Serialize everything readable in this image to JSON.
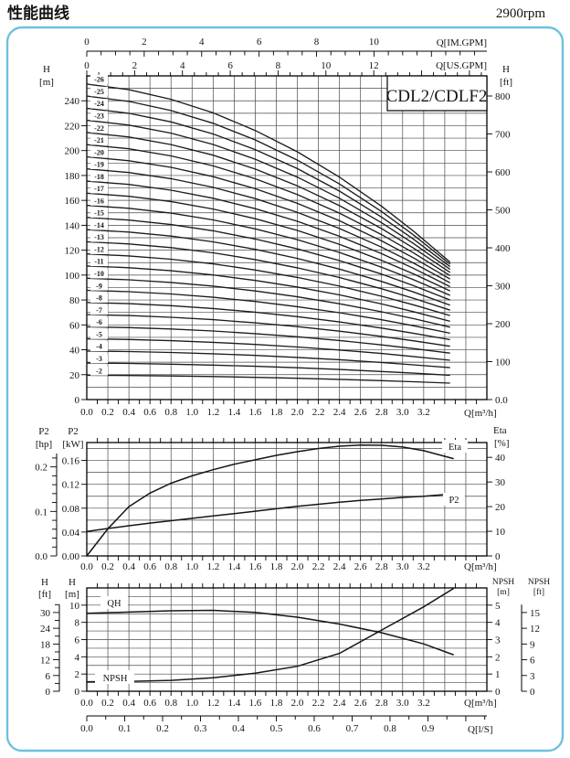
{
  "header": {
    "title": "性能曲线",
    "rpm": "2900rpm"
  },
  "frame": {
    "border_color": "#6ec1dd"
  },
  "model_label": "CDL2/CDLF2",
  "units": {
    "flow_m3h": "Q[m³/h]",
    "flow_imgpm": "Q[IM.GPM]",
    "flow_usgpm": "Q[US.GPM]",
    "flow_ls": "Q[l/S]"
  },
  "flow_axis": {
    "q_max": 3.8,
    "tick_values": [
      0,
      0.2,
      0.4,
      0.6,
      0.8,
      1.0,
      1.2,
      1.4,
      1.6,
      1.8,
      2.0,
      2.2,
      2.4,
      2.6,
      2.8,
      3.0,
      3.2
    ],
    "tick_labels": [
      "0.0",
      "0.2",
      "0.4",
      "0.6",
      "0.8",
      "1.0",
      "1.2",
      "1.4",
      "1.6",
      "1.8",
      "2.0",
      "2.2",
      "2.4",
      "2.6",
      "2.8",
      "3.0",
      "3.2"
    ]
  },
  "imgpm": {
    "tick_values": [
      0,
      2,
      4,
      6,
      8,
      10
    ],
    "tick_labels": [
      "0",
      "2",
      "4",
      "6",
      "8",
      "10"
    ],
    "m3h_per_unit": 0.27277,
    "minor_step": 0.5
  },
  "usgpm": {
    "tick_values": [
      0,
      2,
      4,
      6,
      8,
      10,
      12
    ],
    "tick_labels": [
      "0",
      "2",
      "4",
      "6",
      "8",
      "10",
      "12"
    ],
    "m3h_per_unit": 0.22712,
    "minor_step": 0.5
  },
  "ls": {
    "tick_values": [
      0,
      0.1,
      0.2,
      0.3,
      0.4,
      0.5,
      0.6,
      0.7,
      0.8,
      0.9
    ],
    "tick_labels": [
      "0.0",
      "0.1",
      "0.2",
      "0.3",
      "0.4",
      "0.5",
      "0.6",
      "0.7",
      "0.8",
      "0.9"
    ],
    "m3h_per_unit": 3.6,
    "minor_step": 0.05
  },
  "chart_data": [
    {
      "id": "head_curves",
      "type": "line",
      "title": "CDL2/CDLF2 multi-stage head curves",
      "xlabel": "Q[m³/h]",
      "y_left": {
        "name": "H",
        "unit": "[m]",
        "axis_max": 260,
        "grid_step": 10,
        "tick_values": [
          0,
          20,
          40,
          60,
          80,
          100,
          120,
          140,
          160,
          180,
          200,
          220,
          240
        ],
        "tick_labels": [
          "0",
          "20",
          "40",
          "60",
          "80",
          "100",
          "120",
          "140",
          "160",
          "180",
          "200",
          "220",
          "240"
        ]
      },
      "y_right": {
        "name": "H",
        "unit": "[ft]",
        "m_per_unit": 0.3048,
        "tick_values": [
          0,
          100,
          200,
          300,
          400,
          500,
          600,
          700,
          800
        ],
        "tick_labels": [
          "0.0",
          "100",
          "200",
          "300",
          "400",
          "500",
          "600",
          "700",
          "800"
        ]
      },
      "stage_curves": {
        "q": [
          0,
          0.4,
          0.8,
          1.2,
          1.6,
          2.0,
          2.4,
          2.8,
          3.1,
          3.45
        ],
        "shape": [
          0,
          0.032,
          0.086,
          0.162,
          0.261,
          0.381,
          0.523,
          0.687,
          0.825,
          1
        ],
        "stages": [
          {
            "label": "-2",
            "n": 2,
            "h_start": 19.5,
            "h_end": 13.2
          },
          {
            "label": "-3",
            "n": 3,
            "h_start": 29.3,
            "h_end": 19.5
          },
          {
            "label": "-4",
            "n": 4,
            "h_start": 39.0,
            "h_end": 25.6
          },
          {
            "label": "-5",
            "n": 5,
            "h_start": 48.8,
            "h_end": 31.6
          },
          {
            "label": "-6",
            "n": 6,
            "h_start": 58.5,
            "h_end": 37.3
          },
          {
            "label": "-7",
            "n": 7,
            "h_start": 68.3,
            "h_end": 42.8
          },
          {
            "label": "-8",
            "n": 8,
            "h_start": 78.0,
            "h_end": 48.1
          },
          {
            "label": "-9",
            "n": 9,
            "h_start": 87.8,
            "h_end": 53.3
          },
          {
            "label": "-10",
            "n": 10,
            "h_start": 97.5,
            "h_end": 58.2
          },
          {
            "label": "-11",
            "n": 11,
            "h_start": 107.3,
            "h_end": 62.9
          },
          {
            "label": "-12",
            "n": 12,
            "h_start": 117.0,
            "h_end": 67.5
          },
          {
            "label": "-13",
            "n": 13,
            "h_start": 126.8,
            "h_end": 71.8
          },
          {
            "label": "-14",
            "n": 14,
            "h_start": 136.5,
            "h_end": 75.9
          },
          {
            "label": "-15",
            "n": 15,
            "h_start": 146.3,
            "h_end": 80.0
          },
          {
            "label": "-16",
            "n": 16,
            "h_start": 156.0,
            "h_end": 83.7
          },
          {
            "label": "-17",
            "n": 17,
            "h_start": 165.8,
            "h_end": 87.3
          },
          {
            "label": "-18",
            "n": 18,
            "h_start": 175.5,
            "h_end": 90.7
          },
          {
            "label": "-19",
            "n": 19,
            "h_start": 185.3,
            "h_end": 93.8
          },
          {
            "label": "-20",
            "n": 20,
            "h_start": 195.0,
            "h_end": 96.8
          },
          {
            "label": "-21",
            "n": 21,
            "h_start": 204.8,
            "h_end": 99.6
          },
          {
            "label": "-22",
            "n": 22,
            "h_start": 214.5,
            "h_end": 102.2
          },
          {
            "label": "-23",
            "n": 23,
            "h_start": 224.3,
            "h_end": 104.6
          },
          {
            "label": "-24",
            "n": 24,
            "h_start": 234.0,
            "h_end": 106.8
          },
          {
            "label": "-25",
            "n": 25,
            "h_start": 243.8,
            "h_end": 108.8
          },
          {
            "label": "-26",
            "n": 26,
            "h_start": 253.5,
            "h_end": 110.5
          }
        ]
      }
    },
    {
      "id": "power_efficiency",
      "type": "line",
      "title": "P2 and Eta curves",
      "xlabel": "Q[m³/h]",
      "y_left_outer": {
        "name": "P2",
        "unit": "[hp]",
        "kw_per_unit": 0.746,
        "minor_step": 0.02,
        "axis_max": 0.23,
        "tick_values": [
          0,
          0.1,
          0.2
        ],
        "tick_labels": [
          "0.0",
          "0.1",
          "0.2"
        ]
      },
      "y_left": {
        "name": "P2",
        "unit": "[kW]",
        "axis_max": 0.19,
        "grid_step": 0.02,
        "tick_values": [
          0,
          0.04,
          0.08,
          0.12,
          0.16
        ],
        "tick_labels": [
          "0.00",
          "0.04",
          "0.08",
          "0.12",
          "0.16"
        ]
      },
      "y_right": {
        "name": "Eta",
        "unit": "[%]",
        "axis_max": 46,
        "tick_values": [
          0,
          10,
          20,
          30,
          40
        ],
        "tick_labels": [
          "0",
          "10",
          "20",
          "30",
          "40"
        ]
      },
      "curves": [
        {
          "name": "eta",
          "label": "Eta",
          "axis": "right",
          "q": [
            0,
            0.2,
            0.4,
            0.6,
            0.8,
            1.0,
            1.2,
            1.4,
            1.6,
            1.8,
            2.0,
            2.2,
            2.4,
            2.6,
            2.8,
            3.0,
            3.2,
            3.48
          ],
          "v": [
            0,
            11,
            20,
            25.5,
            29.5,
            32.5,
            35,
            37.2,
            39,
            40.8,
            42.3,
            43.6,
            44.5,
            45,
            44.9,
            44.2,
            42.7,
            39.5
          ]
        },
        {
          "name": "p2",
          "label": "P2",
          "axis": "left",
          "q": [
            0,
            0.2,
            0.4,
            0.6,
            0.8,
            1.0,
            1.2,
            1.4,
            1.6,
            1.8,
            2.0,
            2.2,
            2.4,
            2.6,
            2.8,
            3.0,
            3.2,
            3.48
          ],
          "v": [
            0.041,
            0.046,
            0.0505,
            0.055,
            0.059,
            0.063,
            0.067,
            0.071,
            0.075,
            0.079,
            0.083,
            0.0865,
            0.09,
            0.093,
            0.0955,
            0.098,
            0.1,
            0.104
          ]
        }
      ]
    },
    {
      "id": "qh_npsh",
      "type": "line",
      "title": "Single stage QH and NPSH curves",
      "xlabel": "Q[m³/h]",
      "y_left_outer": {
        "name": "H",
        "unit": "[ft]",
        "m_per_unit": 0.3048,
        "minor_step": 3,
        "axis_max": 33,
        "tick_values": [
          0,
          6,
          12,
          18,
          24,
          30
        ],
        "tick_labels": [
          "0",
          "6",
          "12",
          "18",
          "24",
          "30"
        ]
      },
      "y_left": {
        "name": "H",
        "unit": "[m]",
        "axis_max": 12,
        "grid_step": 1,
        "tick_values": [
          0,
          2,
          4,
          6,
          8,
          10
        ],
        "tick_labels": [
          "0",
          "2",
          "4",
          "6",
          "8",
          "10"
        ]
      },
      "y_right": {
        "name": "NPSH",
        "unit": "[m]",
        "axis_max": 6,
        "tick_values": [
          0,
          1,
          2,
          3,
          4,
          5
        ],
        "tick_labels": [
          "0",
          "1",
          "2",
          "3",
          "4",
          "5"
        ]
      },
      "y_right_outer": {
        "name": "NPSH",
        "unit": "[ft]",
        "m_per_unit": 0.3048,
        "minor_step": 3,
        "axis_max": 16.5,
        "tick_values": [
          0,
          3,
          6,
          9,
          12,
          15
        ],
        "tick_labels": [
          "0",
          "3",
          "6",
          "9",
          "12",
          "15"
        ]
      },
      "curves": [
        {
          "name": "qh",
          "label": "QH",
          "axis": "left",
          "q": [
            0,
            0.4,
            0.8,
            1.2,
            1.6,
            2.0,
            2.4,
            2.8,
            3.2,
            3.48
          ],
          "v": [
            9.05,
            9.2,
            9.35,
            9.4,
            9.15,
            8.6,
            7.8,
            6.8,
            5.5,
            4.25
          ]
        },
        {
          "name": "npsh",
          "label": "NPSH",
          "axis": "right",
          "q": [
            0,
            0.4,
            0.8,
            1.2,
            1.6,
            2.0,
            2.4,
            2.8,
            3.2,
            3.48
          ],
          "v": [
            0.55,
            0.57,
            0.63,
            0.78,
            1.05,
            1.45,
            2.2,
            3.55,
            4.9,
            5.95
          ]
        }
      ]
    }
  ]
}
